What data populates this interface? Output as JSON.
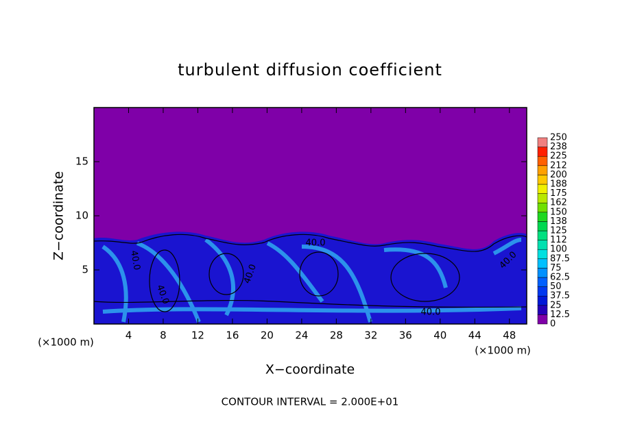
{
  "chart_data": {
    "type": "contour",
    "title": "turbulent diffusion coefficient",
    "xlabel": "X−coordinate",
    "ylabel": "Z−coordinate",
    "xunit_left": "(×1000 m)",
    "xunit_right": "(×1000 m)",
    "footer": "CONTOUR INTERVAL = 2.000E+01",
    "xlim": [
      0,
      50
    ],
    "ylim": [
      0,
      20
    ],
    "xticks": [
      4,
      8,
      12,
      16,
      20,
      24,
      28,
      32,
      36,
      40,
      44,
      48
    ],
    "yticks": [
      5,
      10,
      15
    ],
    "contour_labels": [
      "40.0",
      "40.0",
      "40.0",
      "40.0",
      "40.0",
      "40.0"
    ],
    "colorbar": {
      "levels": [
        0,
        12.5,
        25,
        37.5,
        50,
        62.5,
        75,
        87.5,
        100,
        112,
        125,
        138,
        150,
        162,
        175,
        188,
        200,
        212,
        225,
        238,
        250
      ],
      "colors": [
        "#7f00a8",
        "#2400b8",
        "#0018d8",
        "#0038f0",
        "#0060ff",
        "#0090ff",
        "#00c0ff",
        "#00e0e0",
        "#00e0b0",
        "#00e080",
        "#00d850",
        "#20d820",
        "#70e000",
        "#b8e800",
        "#f0f000",
        "#ffc800",
        "#ffa000",
        "#ff6000",
        "#ff2000",
        "#f08080"
      ]
    }
  }
}
